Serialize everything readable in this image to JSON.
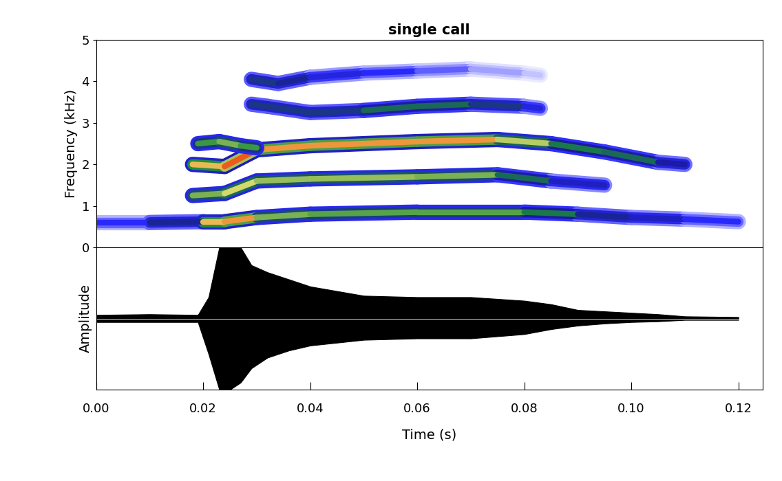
{
  "chart_data": [
    {
      "type": "spectrogram",
      "title": "single call",
      "y_label": "Frequency (kHz)",
      "xlim": [
        0,
        0.1245
      ],
      "ylim": [
        0,
        5
      ],
      "yticks": [
        0,
        1,
        2,
        3,
        4,
        5
      ],
      "tick_labels": "y",
      "color_range": [
        0,
        1
      ],
      "series": [
        {
          "x": [
            0.0,
            0.01,
            0.02,
            0.024,
            0.03,
            0.04,
            0.06,
            0.08,
            0.09,
            0.1,
            0.11,
            0.12
          ],
          "values": [
            0.6,
            0.6,
            0.62,
            0.62,
            0.72,
            0.8,
            0.85,
            0.85,
            0.8,
            0.72,
            0.68,
            0.62
          ],
          "intensity": [
            0.15,
            0.2,
            0.5,
            0.95,
            0.6,
            0.55,
            0.55,
            0.55,
            0.4,
            0.3,
            0.25,
            0.1
          ]
        },
        {
          "x": [
            0.018,
            0.024,
            0.03,
            0.04,
            0.06,
            0.075,
            0.085,
            0.095
          ],
          "values": [
            1.25,
            1.3,
            1.6,
            1.65,
            1.7,
            1.75,
            1.6,
            1.5
          ],
          "intensity": [
            0.45,
            0.7,
            0.6,
            0.6,
            0.6,
            0.55,
            0.35,
            0.2
          ]
        },
        {
          "x": [
            0.018,
            0.024,
            0.03,
            0.04,
            0.06,
            0.075,
            0.085,
            0.095,
            0.105,
            0.11
          ],
          "values": [
            2.0,
            1.95,
            2.35,
            2.45,
            2.55,
            2.6,
            2.5,
            2.3,
            2.05,
            2.0
          ],
          "intensity": [
            0.5,
            0.95,
            0.8,
            0.75,
            0.8,
            0.75,
            0.5,
            0.45,
            0.45,
            0.2
          ]
        },
        {
          "x": [
            0.019,
            0.023,
            0.027,
            0.03
          ],
          "values": [
            2.5,
            2.55,
            2.45,
            2.4
          ],
          "intensity": [
            0.45,
            0.6,
            0.55,
            0.5
          ]
        },
        {
          "x": [
            0.029,
            0.032,
            0.04,
            0.05,
            0.06,
            0.07,
            0.08,
            0.083
          ],
          "values": [
            3.45,
            3.4,
            3.25,
            3.3,
            3.4,
            3.45,
            3.4,
            3.35
          ],
          "intensity": [
            0.3,
            0.45,
            0.3,
            0.45,
            0.45,
            0.45,
            0.3,
            0.15
          ]
        },
        {
          "x": [
            0.029,
            0.034,
            0.04,
            0.05,
            0.06,
            0.07,
            0.08,
            0.083
          ],
          "values": [
            4.05,
            3.95,
            4.1,
            4.2,
            4.25,
            4.3,
            4.2,
            4.15
          ],
          "intensity": [
            0.3,
            0.45,
            0.25,
            0.2,
            0.15,
            0.1,
            0.05,
            0.05
          ]
        }
      ]
    },
    {
      "type": "area",
      "x_label": "Time (s)",
      "y_label": "Amplitude",
      "xlim": [
        0,
        0.1245
      ],
      "ylim": [
        -1,
        1
      ],
      "tick_labels": "x",
      "color": "#000000",
      "xticks": [
        {
          "value": 0,
          "label": "0.00"
        },
        {
          "value": 0.02,
          "label": "0.02"
        },
        {
          "value": 0.04,
          "label": "0.04"
        },
        {
          "value": 0.06,
          "label": "0.06"
        },
        {
          "value": 0.08,
          "label": "0.08"
        },
        {
          "value": 0.1,
          "label": "0.10"
        },
        {
          "value": 0.12,
          "label": "0.12"
        }
      ],
      "x": [
        0.0,
        0.01,
        0.019,
        0.021,
        0.023,
        0.025,
        0.027,
        0.029,
        0.032,
        0.036,
        0.04,
        0.05,
        0.06,
        0.07,
        0.08,
        0.085,
        0.09,
        0.095,
        0.1,
        0.105,
        0.11,
        0.12
      ],
      "upper": [
        0.05,
        0.06,
        0.05,
        0.3,
        1.0,
        1.0,
        1.0,
        0.75,
        0.65,
        0.55,
        0.45,
        0.32,
        0.3,
        0.3,
        0.25,
        0.2,
        0.12,
        0.1,
        0.08,
        0.06,
        0.03,
        0.02
      ],
      "lower": [
        -0.05,
        -0.05,
        -0.05,
        -0.5,
        -1.0,
        -1.0,
        -0.9,
        -0.7,
        -0.55,
        -0.45,
        -0.38,
        -0.3,
        -0.28,
        -0.28,
        -0.22,
        -0.15,
        -0.1,
        -0.07,
        -0.05,
        -0.04,
        -0.02,
        -0.02
      ]
    }
  ]
}
